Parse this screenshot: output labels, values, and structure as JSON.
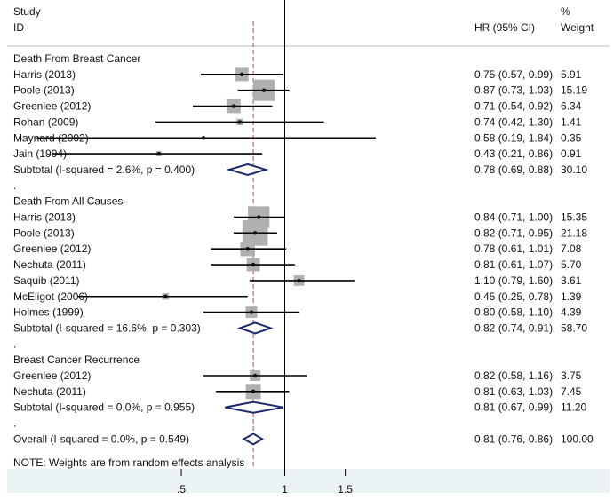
{
  "chart_data": {
    "type": "forest",
    "header": {
      "study_line1": "Study",
      "study_line2": "ID",
      "effect": "HR (95% CI)",
      "weight_line1": "%",
      "weight_line2": "Weight"
    },
    "x_ticks": [
      {
        "value": 0.5,
        "label": ".5"
      },
      {
        "value": 1,
        "label": "1"
      },
      {
        "value": 1.5,
        "label": "1.5"
      }
    ],
    "null_value": 1,
    "overall_effect": 0.81,
    "note": "NOTE: Weights are from random effects analysis",
    "rows": [
      {
        "kind": "group",
        "label": "Death From Breast Cancer"
      },
      {
        "kind": "study",
        "label": "Harris (2013)",
        "hr": 0.75,
        "lo": 0.57,
        "hi": 0.99,
        "ci_text": "0.75 (0.57, 0.99)",
        "weight": "5.91",
        "w": 5.91
      },
      {
        "kind": "study",
        "label": "Poole (2013)",
        "hr": 0.87,
        "lo": 0.73,
        "hi": 1.03,
        "ci_text": "0.87 (0.73, 1.03)",
        "weight": "15.19",
        "w": 15.19
      },
      {
        "kind": "study",
        "label": "Greenlee (2012)",
        "hr": 0.71,
        "lo": 0.54,
        "hi": 0.92,
        "ci_text": "0.71 (0.54, 0.92)",
        "weight": "6.34",
        "w": 6.34
      },
      {
        "kind": "study",
        "label": "Rohan (2009)",
        "hr": 0.74,
        "lo": 0.42,
        "hi": 1.3,
        "ci_text": "0.74 (0.42, 1.30)",
        "weight": "1.41",
        "w": 1.41
      },
      {
        "kind": "study",
        "label": "Maynard (2002)",
        "hr": 0.58,
        "lo": 0.19,
        "hi": 1.84,
        "ci_text": "0.58 (0.19, 1.84)",
        "weight": "0.35",
        "w": 0.35
      },
      {
        "kind": "study",
        "label": "Jain (1994)",
        "hr": 0.43,
        "lo": 0.21,
        "hi": 0.86,
        "ci_text": "0.43 (0.21, 0.86)",
        "weight": "0.91",
        "w": 0.91
      },
      {
        "kind": "subtotal",
        "label": "Subtotal  (I-squared = 2.6%, p = 0.400)",
        "hr": 0.78,
        "lo": 0.69,
        "hi": 0.88,
        "ci_text": "0.78 (0.69, 0.88)",
        "weight": "30.10"
      },
      {
        "kind": "dot",
        "label": "."
      },
      {
        "kind": "group",
        "label": "Death From All Causes"
      },
      {
        "kind": "study",
        "label": "Harris (2013)",
        "hr": 0.84,
        "lo": 0.71,
        "hi": 1.0,
        "ci_text": "0.84 (0.71, 1.00)",
        "weight": "15.35",
        "w": 15.35
      },
      {
        "kind": "study",
        "label": "Poole (2013)",
        "hr": 0.82,
        "lo": 0.71,
        "hi": 0.95,
        "ci_text": "0.82 (0.71, 0.95)",
        "weight": "21.18",
        "w": 21.18
      },
      {
        "kind": "study",
        "label": "Greenlee (2012)",
        "hr": 0.78,
        "lo": 0.61,
        "hi": 1.01,
        "ci_text": "0.78 (0.61, 1.01)",
        "weight": "7.08",
        "w": 7.08
      },
      {
        "kind": "study",
        "label": "Nechuta (2011)",
        "hr": 0.81,
        "lo": 0.61,
        "hi": 1.07,
        "ci_text": "0.81 (0.61, 1.07)",
        "weight": "5.70",
        "w": 5.7
      },
      {
        "kind": "study",
        "label": "Saquib (2011)",
        "hr": 1.1,
        "lo": 0.79,
        "hi": 1.6,
        "ci_text": "1.10 (0.79, 1.60)",
        "weight": "3.61",
        "w": 3.61
      },
      {
        "kind": "study",
        "label": "McEligot (2006)",
        "hr": 0.45,
        "lo": 0.25,
        "hi": 0.78,
        "ci_text": "0.45 (0.25, 0.78)",
        "weight": "1.39",
        "w": 1.39
      },
      {
        "kind": "study",
        "label": "Holmes (1999)",
        "hr": 0.8,
        "lo": 0.58,
        "hi": 1.1,
        "ci_text": "0.80 (0.58, 1.10)",
        "weight": "4.39",
        "w": 4.39
      },
      {
        "kind": "subtotal",
        "label": "Subtotal  (I-squared = 16.6%, p = 0.303)",
        "hr": 0.82,
        "lo": 0.74,
        "hi": 0.91,
        "ci_text": "0.82 (0.74, 0.91)",
        "weight": "58.70"
      },
      {
        "kind": "dot",
        "label": "."
      },
      {
        "kind": "group",
        "label": "Breast Cancer Recurrence"
      },
      {
        "kind": "study",
        "label": "Greenlee (2012)",
        "hr": 0.82,
        "lo": 0.58,
        "hi": 1.16,
        "ci_text": "0.82 (0.58, 1.16)",
        "weight": "3.75",
        "w": 3.75
      },
      {
        "kind": "study",
        "label": "Nechuta (2011)",
        "hr": 0.81,
        "lo": 0.63,
        "hi": 1.03,
        "ci_text": "0.81 (0.63, 1.03)",
        "weight": "7.45",
        "w": 7.45
      },
      {
        "kind": "subtotal",
        "label": "Subtotal  (I-squared = 0.0%, p = 0.955)",
        "hr": 0.81,
        "lo": 0.67,
        "hi": 0.99,
        "ci_text": "0.81 (0.67, 0.99)",
        "weight": "11.20"
      },
      {
        "kind": "dot",
        "label": "."
      },
      {
        "kind": "overall",
        "label": "Overall  (I-squared = 0.0%, p = 0.549)",
        "hr": 0.81,
        "lo": 0.76,
        "hi": 0.86,
        "ci_text": "0.81 (0.76, 0.86)",
        "weight": "100.00"
      }
    ]
  }
}
